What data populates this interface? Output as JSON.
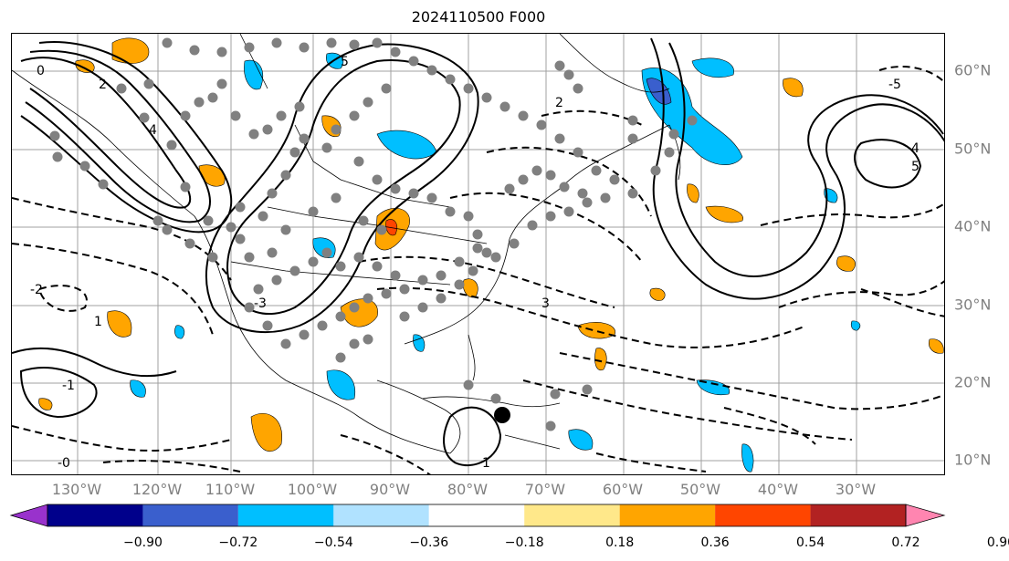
{
  "title": "2024110500 F000",
  "map": {
    "lon_labels": [
      "130°W",
      "120°W",
      "110°W",
      "100°W",
      "90°W",
      "80°W",
      "70°W",
      "60°W",
      "50°W",
      "40°W",
      "30°W"
    ],
    "lat_labels": [
      "60°N",
      "50°N",
      "40°N",
      "30°N",
      "20°N",
      "10°N"
    ],
    "contour_labels": [
      "0",
      "2",
      "4",
      "5",
      "3",
      "1",
      "-1",
      "-2",
      "-3",
      "-0",
      "4",
      "5",
      "-5",
      "2",
      "1"
    ],
    "grid_color": "#a0a0a0",
    "station_color": "#808080",
    "marker_color": "#000000"
  },
  "colorbar": {
    "ticks": [
      "−0.90",
      "−0.72",
      "−0.54",
      "−0.36",
      "−0.18",
      "0.18",
      "0.36",
      "0.54",
      "0.72",
      "0.90"
    ],
    "colors": [
      "#9932cc",
      "#00008b",
      "#3a5fcd",
      "#00bfff",
      "#b0e2ff",
      "#ffffff",
      "#ffe88a",
      "#ffa500",
      "#ff4500",
      "#b22222",
      "#ff85b0"
    ]
  }
}
